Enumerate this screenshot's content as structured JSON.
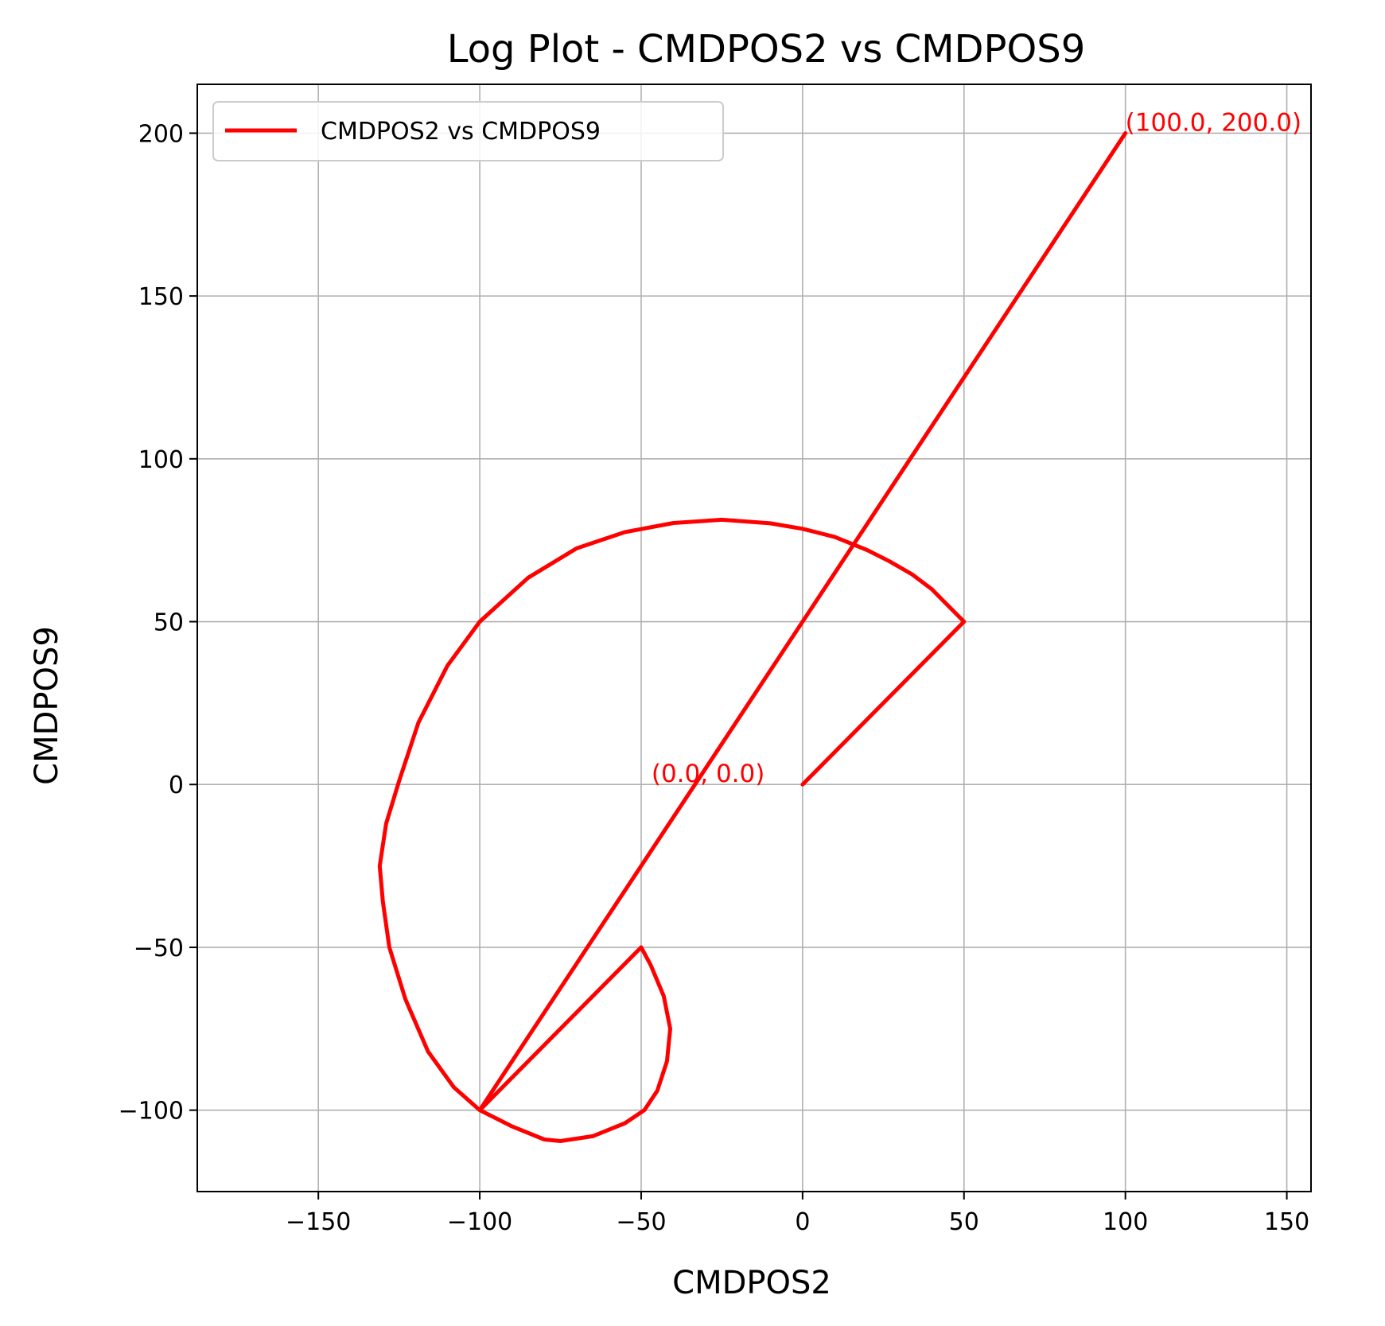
{
  "chart_data": {
    "type": "line",
    "title": "Log Plot - CMDPOS2 vs CMDPOS9",
    "xlabel": "CMDPOS2",
    "ylabel": "CMDPOS9",
    "xlim": [
      -187.5,
      157.5
    ],
    "ylim": [
      -125,
      215
    ],
    "x_ticks": [
      -150,
      -100,
      -50,
      0,
      50,
      100,
      150
    ],
    "y_ticks": [
      -100,
      -50,
      0,
      50,
      100,
      150,
      200
    ],
    "x_tick_labels": [
      "−150",
      "−100",
      "−50",
      "0",
      "50",
      "100",
      "150"
    ],
    "y_tick_labels": [
      "−100",
      "−50",
      "0",
      "50",
      "100",
      "150",
      "200"
    ],
    "grid": true,
    "legend": {
      "placement": "upper-left"
    },
    "series": [
      {
        "name": "CMDPOS2 vs CMDPOS9",
        "color": "#ff0000",
        "x": [
          0,
          50,
          45,
          40,
          34,
          27,
          20,
          10,
          0,
          -10,
          -25,
          -40,
          -55,
          -70,
          -85,
          -100,
          -110,
          -119,
          -125,
          -129,
          -131,
          -130,
          -128,
          -123,
          -116,
          -108,
          -100,
          -90,
          -80,
          -75,
          -65,
          -55,
          -49,
          -45,
          -42,
          -41,
          -43,
          -47,
          -50,
          -100,
          100
        ],
        "y": [
          0,
          50,
          55,
          60,
          64.5,
          68.5,
          72,
          76,
          78.5,
          80.2,
          81.3,
          80.3,
          77.5,
          72.5,
          63.5,
          50,
          36.5,
          19,
          1,
          -12,
          -25,
          -36,
          -50,
          -66,
          -82,
          -93,
          -100,
          -105,
          -109,
          -109.5,
          -108,
          -104,
          -100,
          -94,
          -85,
          -75,
          -65,
          -55.5,
          -50,
          -100,
          200
        ]
      }
    ],
    "annotations": [
      {
        "text": "(0.0, 0.0)",
        "x": 0,
        "y": 0,
        "color": "#ff0000"
      },
      {
        "text": "(100.0, 200.0)",
        "x": 100,
        "y": 200,
        "color": "#ff0000"
      }
    ]
  }
}
